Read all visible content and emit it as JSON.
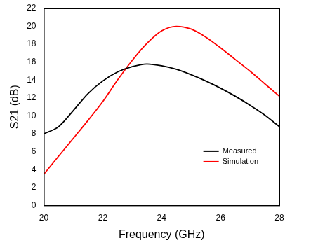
{
  "chart_data": {
    "type": "line",
    "x_label": "Frequency (GHz)",
    "y_label": "S21 (dB)",
    "x": [
      20,
      20.5,
      21,
      21.5,
      22,
      22.5,
      23,
      23.5,
      24,
      24.5,
      25,
      25.5,
      26,
      26.5,
      27,
      27.5,
      28
    ],
    "series": [
      {
        "name": "Measured",
        "color": "#000000",
        "values": [
          8.0,
          8.8,
          10.6,
          12.5,
          13.9,
          14.9,
          15.5,
          15.8,
          15.6,
          15.2,
          14.6,
          13.9,
          13.1,
          12.2,
          11.2,
          10.1,
          8.8
        ]
      },
      {
        "name": "Simulation",
        "color": "#ff0000",
        "values": [
          3.5,
          5.5,
          7.5,
          9.5,
          11.6,
          14.0,
          16.2,
          18.1,
          19.5,
          20.0,
          19.7,
          18.8,
          17.6,
          16.3,
          15.0,
          13.6,
          12.2
        ]
      }
    ],
    "xlim": [
      20,
      28
    ],
    "xticks": [
      20,
      22,
      24,
      26,
      28
    ],
    "ylim": [
      0,
      22
    ],
    "yticks": [
      0,
      2,
      4,
      6,
      8,
      10,
      12,
      14,
      16,
      18,
      20,
      22
    ],
    "grid": false,
    "legend": "lower right"
  }
}
